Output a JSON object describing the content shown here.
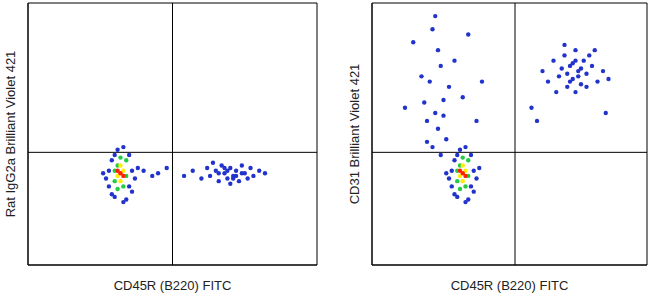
{
  "chart_data": [
    {
      "type": "scatter",
      "x_label": "CD45R (B220) FITC",
      "y_label": "Rat IgG2a Brilliant Violet 421",
      "xlim": [
        0,
        100
      ],
      "ylim": [
        0,
        100
      ],
      "tick_labels": false,
      "quadrant_lines": {
        "x": 50,
        "y": 43
      },
      "series": [
        {
          "color": "#2233cc",
          "x": [
            28,
            29,
            30,
            31,
            33,
            35,
            36,
            34,
            28,
            36,
            27,
            37,
            30,
            35,
            26,
            38,
            29,
            33,
            40,
            45,
            48,
            43,
            54,
            57,
            60,
            62,
            63,
            65,
            66,
            67,
            68,
            69,
            70,
            71,
            72,
            73,
            74,
            75,
            76,
            77,
            78,
            80,
            82,
            64,
            70,
            66,
            72,
            74,
            68,
            69,
            71
          ],
          "y": [
            30,
            40,
            26,
            44,
            45,
            42,
            28,
            25,
            36,
            36,
            33,
            33,
            42,
            30,
            35,
            37,
            27,
            24,
            36,
            35,
            37,
            34,
            34,
            36,
            33,
            37,
            34,
            36,
            32,
            38,
            35,
            33,
            37,
            34,
            36,
            32,
            38,
            35,
            33,
            37,
            34,
            36,
            35,
            39,
            31,
            35,
            34,
            35,
            37,
            36,
            33
          ]
        },
        {
          "color": "#22cc44",
          "x": [
            30,
            34,
            31,
            33,
            30,
            34,
            32,
            31
          ],
          "y": [
            32,
            40,
            38,
            30,
            36,
            34,
            41,
            29
          ]
        },
        {
          "color": "#ffee00",
          "x": [
            31,
            33,
            32,
            32
          ],
          "y": [
            34,
            36,
            32,
            38
          ]
        },
        {
          "color": "#ff2200",
          "x": [
            32,
            31,
            33
          ],
          "y": [
            35,
            36,
            34
          ]
        }
      ]
    },
    {
      "type": "scatter",
      "x_label": "CD45R (B220) FITC",
      "y_label": "CD31 Brilliant Violet 421",
      "xlim": [
        0,
        100
      ],
      "ylim": [
        0,
        100
      ],
      "tick_labels": false,
      "quadrant_lines": {
        "x": 52,
        "y": 43
      },
      "series": [
        {
          "color": "#2233cc",
          "x": [
            29,
            30,
            31,
            32,
            34,
            36,
            37,
            35,
            29,
            37,
            28,
            38,
            31,
            36,
            27,
            39,
            30,
            34,
            22,
            24,
            23,
            26,
            21,
            25,
            27,
            20,
            24,
            22,
            28,
            19,
            26,
            23,
            30,
            15,
            18,
            12,
            35,
            33,
            40,
            38,
            20,
            25,
            64,
            66,
            68,
            70,
            71,
            72,
            73,
            74,
            75,
            76,
            77,
            78,
            80,
            82,
            84,
            69,
            71,
            73,
            75,
            79,
            67,
            86,
            70,
            74,
            62,
            81,
            76,
            72,
            74,
            78,
            60,
            58,
            85
          ],
          "y": [
            30,
            40,
            26,
            44,
            45,
            42,
            28,
            25,
            36,
            36,
            33,
            33,
            42,
            30,
            35,
            37,
            27,
            24,
            45,
            52,
            58,
            63,
            70,
            76,
            48,
            55,
            82,
            90,
            68,
            62,
            57,
            95,
            78,
            85,
            72,
            60,
            88,
            64,
            70,
            55,
            47,
            42,
            70,
            78,
            72,
            80,
            68,
            76,
            71,
            82,
            74,
            69,
            78,
            73,
            76,
            70,
            74,
            75,
            73,
            77,
            72,
            80,
            66,
            71,
            84,
            66,
            74,
            82,
            75,
            70,
            78,
            68,
            55,
            60,
            58
          ]
        },
        {
          "color": "#22cc44",
          "x": [
            31,
            35,
            32,
            34,
            31,
            35,
            33,
            32
          ],
          "y": [
            32,
            40,
            38,
            30,
            36,
            34,
            41,
            29
          ]
        },
        {
          "color": "#ffee00",
          "x": [
            32,
            34,
            33,
            33
          ],
          "y": [
            34,
            36,
            32,
            38
          ]
        },
        {
          "color": "#ff2200",
          "x": [
            33,
            32,
            34
          ],
          "y": [
            35,
            36,
            34
          ]
        }
      ]
    }
  ]
}
